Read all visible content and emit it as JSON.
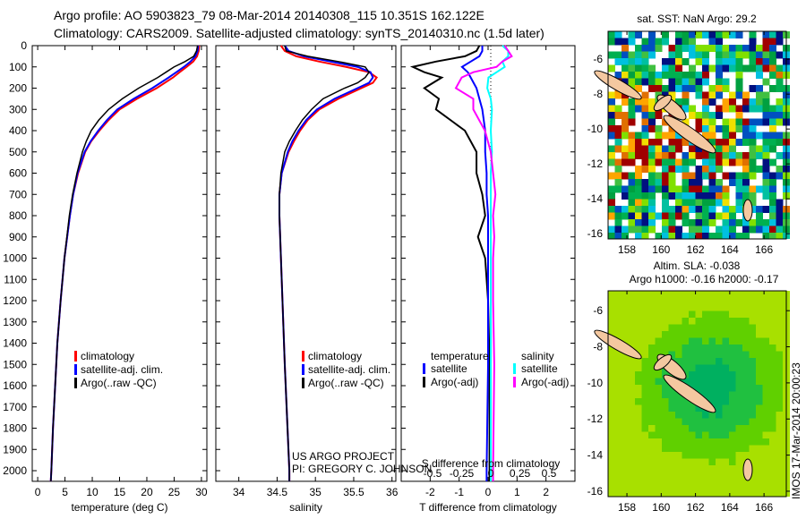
{
  "title": {
    "line1": "Argo profile: AO 5903823_79 08-Mar-2014 20140308_115 10.351S 162.122E",
    "line2": "Climatology: CARS2009. Satellite-adjusted climatology: synTS_20140310.nc (1.5d later)"
  },
  "colors": {
    "clim": "#ff0000",
    "sat": "#0000ff",
    "argo": "#000000",
    "sal_sat": "#00ffff",
    "sal_argo": "#ff00ff"
  },
  "chart_data": [
    {
      "type": "line",
      "id": "temperature",
      "xlabel": "temperature (deg C)",
      "xlim": [
        -1,
        31
      ],
      "xticks": [
        0,
        5,
        10,
        15,
        20,
        25,
        30
      ],
      "ylim": [
        0,
        2050
      ],
      "yticks": [
        0,
        100,
        200,
        300,
        400,
        500,
        600,
        700,
        800,
        900,
        1000,
        1100,
        1200,
        1300,
        1400,
        1500,
        1600,
        1700,
        1800,
        1900,
        2000
      ],
      "legend": [
        "climatology",
        "satellite-adj. clim.",
        "Argo(..raw -QC)"
      ],
      "depth": [
        0,
        25,
        50,
        75,
        100,
        125,
        150,
        200,
        250,
        300,
        350,
        400,
        450,
        500,
        600,
        700,
        800,
        1000,
        1200,
        1400,
        1600,
        1800,
        2000,
        2050
      ],
      "series": [
        {
          "name": "climatology",
          "values": [
            29.6,
            29.5,
            29.2,
            28.5,
            27.3,
            26,
            24.8,
            21.8,
            18.2,
            15,
            13,
            11.3,
            9.8,
            8.7,
            7.4,
            6.5,
            5.9,
            4.9,
            4.2,
            3.6,
            3.2,
            2.8,
            2.5,
            2.4
          ]
        },
        {
          "name": "satellite-adj. clim.",
          "values": [
            29.4,
            29.3,
            28.9,
            28,
            26.8,
            25.4,
            24,
            21,
            17.6,
            14.6,
            12.7,
            11.1,
            9.7,
            8.6,
            7.3,
            6.5,
            5.9,
            4.9,
            4.2,
            3.6,
            3.2,
            2.8,
            2.5,
            2.4
          ]
        },
        {
          "name": "Argo(..raw -QC)",
          "values": [
            29.3,
            29.1,
            28.6,
            27,
            25,
            23.5,
            22,
            18.5,
            15.5,
            13,
            11.2,
            9.8,
            8.9,
            8.2,
            7.2,
            6.4,
            5.8,
            4.9,
            4.2,
            3.6,
            3.2,
            2.8,
            2.5,
            2.4
          ]
        }
      ]
    },
    {
      "type": "line",
      "id": "salinity",
      "xlabel": "salinity",
      "xlim": [
        33.7,
        36.05
      ],
      "xticks": [
        34,
        34.5,
        35,
        35.5,
        36
      ],
      "legend": [
        "climatology",
        "satellite-adj. clim.",
        "Argo(..raw -QC)"
      ],
      "annotation": [
        "US ARGO PROJECT",
        "PI: GREGORY C. JOHNSON"
      ],
      "depth": [
        0,
        25,
        50,
        75,
        100,
        125,
        150,
        175,
        200,
        250,
        300,
        350,
        400,
        450,
        500,
        600,
        700,
        800,
        1000,
        1200,
        1500,
        2000,
        2050
      ],
      "series": [
        {
          "name": "climatology",
          "values": [
            34.55,
            34.6,
            34.75,
            35.05,
            35.4,
            35.7,
            35.8,
            35.75,
            35.6,
            35.3,
            35.05,
            34.9,
            34.8,
            34.72,
            34.65,
            34.56,
            34.53,
            34.53,
            34.55,
            34.57,
            34.6,
            34.66,
            34.66
          ]
        },
        {
          "name": "satellite-adj. clim.",
          "values": [
            34.6,
            34.65,
            34.85,
            35.2,
            35.55,
            35.72,
            35.75,
            35.7,
            35.55,
            35.25,
            35.02,
            34.88,
            34.78,
            34.7,
            34.64,
            34.56,
            34.53,
            34.53,
            34.55,
            34.57,
            34.6,
            34.66,
            34.66
          ]
        },
        {
          "name": "Argo(..raw -QC)",
          "values": [
            34.6,
            34.62,
            34.9,
            35.3,
            35.65,
            35.7,
            35.65,
            35.55,
            35.38,
            35.1,
            34.95,
            34.83,
            34.74,
            34.66,
            34.6,
            34.55,
            34.53,
            34.53,
            34.55,
            34.57,
            34.6,
            34.66,
            34.66
          ]
        }
      ]
    },
    {
      "type": "line",
      "id": "differences",
      "xlabel": "T difference from climatology",
      "x2label": "S difference from climatology",
      "xlim": [
        -3,
        3
      ],
      "xticks": [
        -2,
        -1,
        0,
        1,
        2
      ],
      "x2ticks": [
        -0.5,
        -0.25,
        0,
        0.25,
        0.5
      ],
      "legend": {
        "temperature": [
          "temperature",
          "satellite",
          "Argo(-adj)"
        ],
        "salinity": [
          "salinity",
          "satellite",
          "Argo(-adj)"
        ]
      },
      "depth": [
        0,
        25,
        50,
        75,
        100,
        125,
        150,
        200,
        250,
        300,
        400,
        500,
        600,
        700,
        800,
        900,
        1000,
        1200,
        1500,
        2000,
        2050
      ],
      "series": [
        {
          "name": "temperature satellite",
          "values": [
            -0.2,
            -0.2,
            -0.3,
            -0.6,
            -0.9,
            -0.7,
            -0.6,
            -0.4,
            -0.3,
            -0.2,
            -0.1,
            -0.1,
            -0.05,
            -0.05,
            0,
            0,
            0,
            0,
            0,
            -0.05,
            -0.05
          ]
        },
        {
          "name": "temperature Argo(-adj)",
          "values": [
            -0.3,
            -0.4,
            -0.8,
            -1.8,
            -2.6,
            -2.2,
            -1.6,
            -2.2,
            -1.7,
            -1.8,
            -0.8,
            -0.4,
            -0.4,
            -0.2,
            -0.1,
            -0.35,
            -0.1,
            0,
            0.05,
            0.05,
            0.05
          ]
        },
        {
          "name": "salinity satellite",
          "values": [
            0.1,
            0.15,
            0.15,
            0.1,
            0.12,
            0.05,
            -0.02,
            -0.03,
            0,
            0.01,
            0,
            0.01,
            0,
            0,
            0,
            0,
            0,
            0,
            0,
            0,
            0
          ]
        },
        {
          "name": "salinity Argo(-adj)",
          "values": [
            0.12,
            0.15,
            0.18,
            0.1,
            0.05,
            -0.15,
            -0.25,
            -0.3,
            -0.15,
            -0.15,
            -0.05,
            0,
            0.02,
            0.04,
            0.02,
            0.03,
            0.02,
            0.02,
            0.03,
            0.02,
            0.02
          ]
        }
      ]
    },
    {
      "type": "heatmap",
      "id": "sst-map",
      "title": "sat. SST: NaN Argo: 29.2",
      "xticks": [
        158,
        160,
        162,
        164,
        166
      ],
      "yticks": [
        -6,
        -8,
        -10,
        -12,
        -14,
        -16
      ],
      "xlim": [
        156.9,
        167.3
      ],
      "ylim": [
        -16.3,
        -4.4
      ]
    },
    {
      "type": "heatmap",
      "id": "sla-map",
      "title": "Altim. SLA: -0.038",
      "subtitle": "Argo h1000: -0.16 h2000: -0.17",
      "xticks": [
        158,
        160,
        162,
        164,
        166
      ],
      "yticks": [
        -6,
        -8,
        -10,
        -12,
        -14,
        -16
      ],
      "xlim": [
        156.9,
        167.3
      ],
      "ylim": [
        -16.3,
        -4.9
      ]
    }
  ],
  "footer": "IMOS 17-Mar-2014 20:00:23"
}
